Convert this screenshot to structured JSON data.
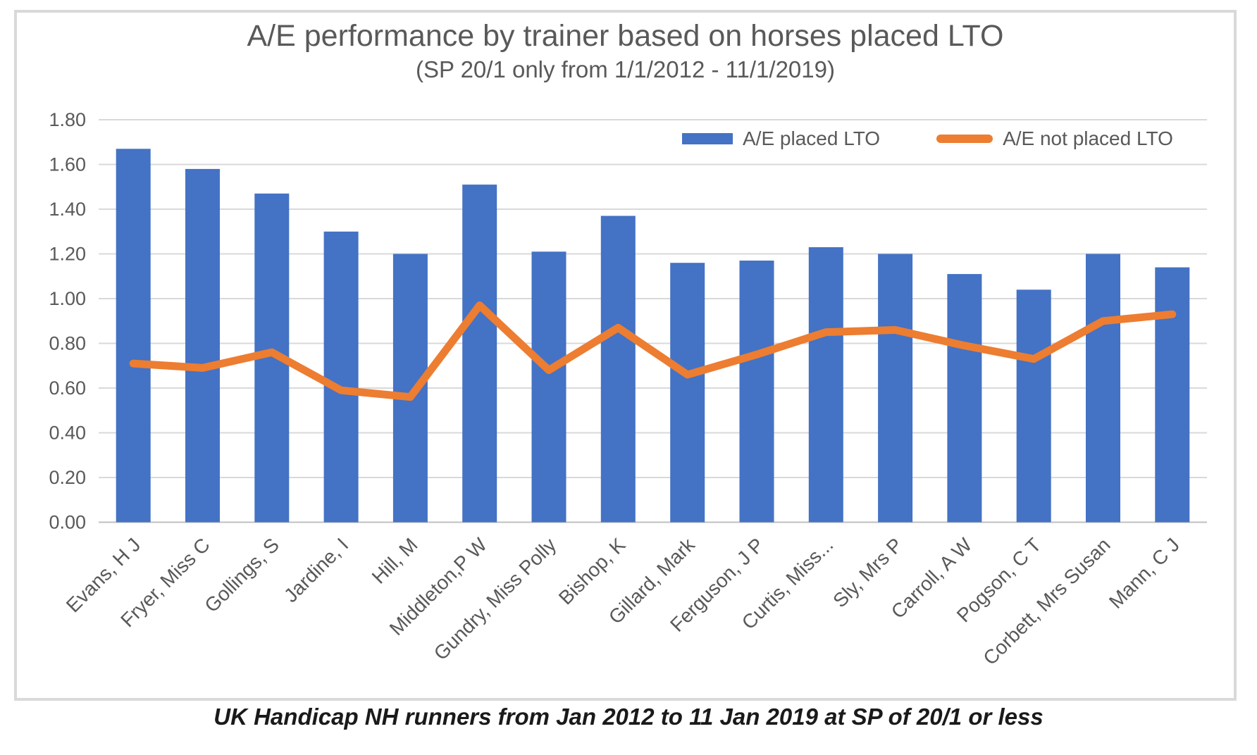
{
  "chart_data": {
    "type": "combo",
    "title": "A/E performance by trainer based on horses placed LTO",
    "subtitle": "(SP 20/1 only from 1/1/2012 - 11/1/2019)",
    "categories": [
      "Evans, H J",
      "Fryer, Miss C",
      "Gollings, S",
      "Jardine, I",
      "Hill, M",
      "Middleton,P W",
      "Gundry, Miss Polly",
      "Bishop, K",
      "Gillard, Mark",
      "Ferguson, J P",
      "Curtis, Miss...",
      "Sly, Mrs P",
      "Carroll, A W",
      "Pogson, C T",
      "Corbett, Mrs Susan",
      "Mann, C J"
    ],
    "series": [
      {
        "name": "A/E placed LTO",
        "type": "bar",
        "color": "#4472C4",
        "values": [
          1.67,
          1.58,
          1.47,
          1.3,
          1.2,
          1.51,
          1.21,
          1.37,
          1.16,
          1.17,
          1.23,
          1.2,
          1.11,
          1.04,
          1.2,
          1.14
        ]
      },
      {
        "name": "A/E not placed LTO",
        "type": "line",
        "color": "#ED7D31",
        "values": [
          0.71,
          0.69,
          0.76,
          0.59,
          0.56,
          0.97,
          0.68,
          0.87,
          0.66,
          0.75,
          0.85,
          0.86,
          0.79,
          0.73,
          0.9,
          0.93
        ]
      }
    ],
    "ylim": [
      0,
      1.8
    ],
    "ytick_step": 0.2,
    "ytick_labels": [
      "0.00",
      "0.20",
      "0.40",
      "0.60",
      "0.80",
      "1.00",
      "1.20",
      "1.40",
      "1.60",
      "1.80"
    ],
    "grid": true,
    "legend_position": "top-right",
    "xlabel": "",
    "ylabel": ""
  },
  "footer": {
    "caption": "UK Handicap NH runners from Jan 2012 to 11 Jan 2019 at SP of 20/1 or less"
  },
  "colors": {
    "bar": "#4472C4",
    "line": "#ED7D31",
    "gridline": "#D9D9D9",
    "axis_line": "#BFBFBF",
    "axis_text": "#595959",
    "title_text": "#595959",
    "legend_text": "#595959",
    "footer_text": "#1A1A1A",
    "frame_border": "#D9D9D9",
    "background": "#FFFFFF"
  }
}
